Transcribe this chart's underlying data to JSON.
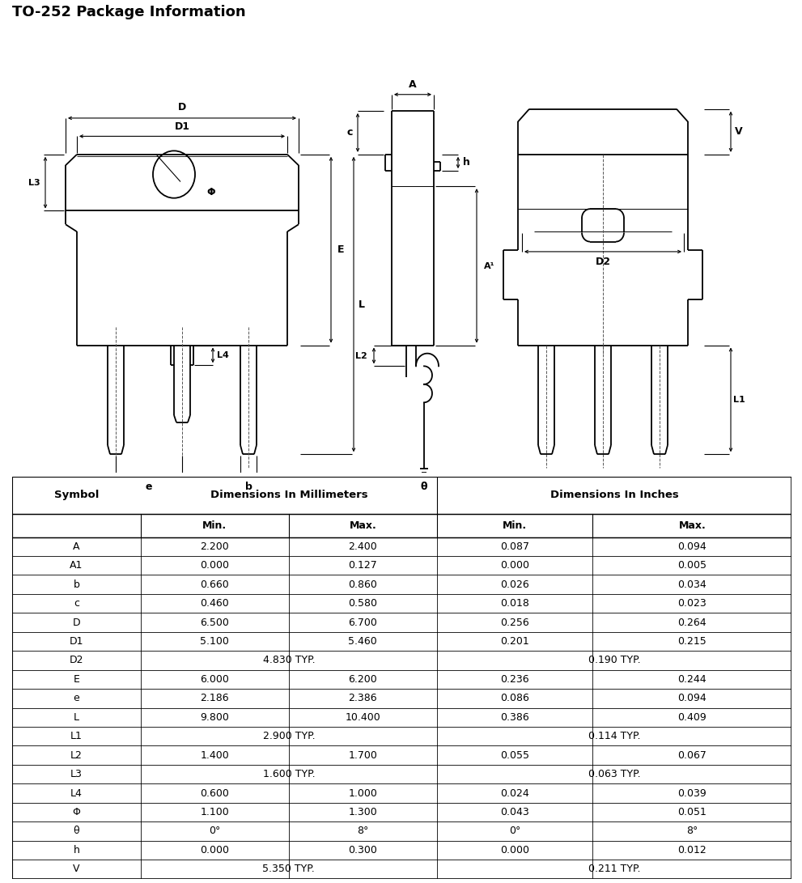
{
  "title": "TO-252 Package Information",
  "table_rows": [
    [
      "A",
      "2.200",
      "2.400",
      "0.087",
      "0.094"
    ],
    [
      "A1",
      "0.000",
      "0.127",
      "0.000",
      "0.005"
    ],
    [
      "b",
      "0.660",
      "0.860",
      "0.026",
      "0.034"
    ],
    [
      "c",
      "0.460",
      "0.580",
      "0.018",
      "0.023"
    ],
    [
      "D",
      "6.500",
      "6.700",
      "0.256",
      "0.264"
    ],
    [
      "D1",
      "5.100",
      "5.460",
      "0.201",
      "0.215"
    ],
    [
      "D2",
      "TYP_4.830 TYP.",
      "",
      "TYP_0.190 TYP.",
      ""
    ],
    [
      "E",
      "6.000",
      "6.200",
      "0.236",
      "0.244"
    ],
    [
      "e",
      "2.186",
      "2.386",
      "0.086",
      "0.094"
    ],
    [
      "L",
      "9.800",
      "10.400",
      "0.386",
      "0.409"
    ],
    [
      "L1",
      "TYP_2.900 TYP.",
      "",
      "TYP_0.114 TYP.",
      ""
    ],
    [
      "L2",
      "1.400",
      "1.700",
      "0.055",
      "0.067"
    ],
    [
      "L3",
      "TYP_1.600 TYP.",
      "",
      "TYP_0.063 TYP.",
      ""
    ],
    [
      "L4",
      "0.600",
      "1.000",
      "0.024",
      "0.039"
    ],
    [
      "Φ",
      "1.100",
      "1.300",
      "0.043",
      "0.051"
    ],
    [
      "θ",
      "0°",
      "8°",
      "0°",
      "8°"
    ],
    [
      "h",
      "0.000",
      "0.300",
      "0.000",
      "0.012"
    ],
    [
      "V",
      "TYP_5.350 TYP.",
      "",
      "TYP_0.211 TYP.",
      ""
    ]
  ]
}
